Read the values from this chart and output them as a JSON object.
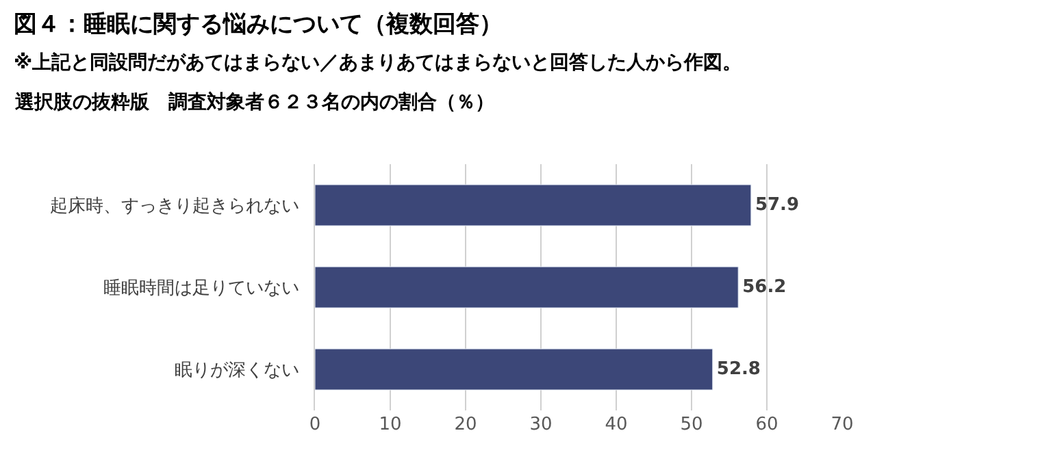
{
  "chart_data": {
    "type": "bar",
    "orientation": "horizontal",
    "title": "図４：睡眠に関する悩みについて（複数回答）",
    "subtitle": "※上記と同設問だがあてはまらない／あまりあてはまらないと回答した人から作図。",
    "annotations": [
      "選択肢の抜粋版　調査対象者６２３名の内の割合（％）"
    ],
    "categories": [
      "起床時、すっきり起きられない",
      "睡眠時間は足りていない",
      "眠りが深くない"
    ],
    "values": [
      57.9,
      56.2,
      52.8
    ],
    "color": "#3c4778",
    "xlim": [
      0,
      70
    ],
    "xticks": [
      0,
      10,
      20,
      30,
      40,
      50,
      60,
      70
    ],
    "grid": "x",
    "data_labels": true
  }
}
